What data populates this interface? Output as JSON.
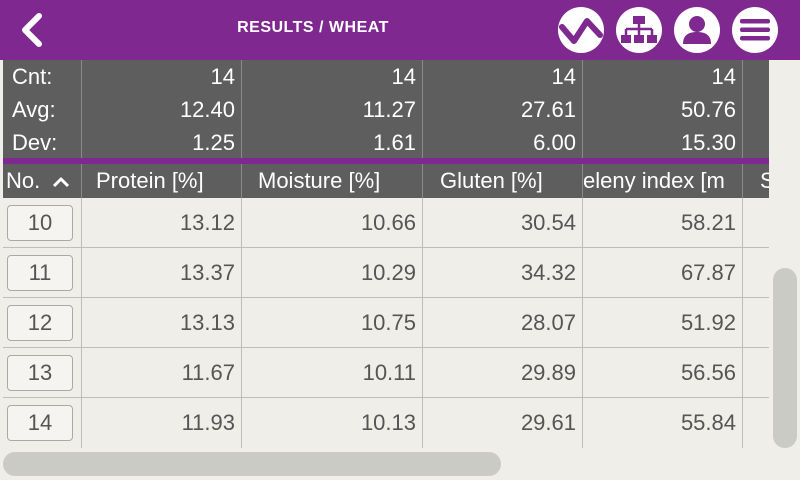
{
  "header": {
    "title": "RESULTS / WHEAT",
    "icons": [
      "back-arrow-icon",
      "trend-chart-icon",
      "network-tree-icon",
      "user-icon",
      "menu-icon"
    ],
    "accent_color": "#7f2990"
  },
  "stats": {
    "labels": [
      "Cnt:",
      "Avg:",
      "Dev:"
    ],
    "protein": [
      "14",
      "12.40",
      "1.25"
    ],
    "moisture": [
      "14",
      "11.27",
      "1.61"
    ],
    "gluten": [
      "14",
      "27.61",
      "6.00"
    ],
    "zeleny": [
      "14",
      "50.76",
      "15.30"
    ]
  },
  "columns": {
    "no": "No.",
    "protein": "Protein [%]",
    "moisture": "Moisture [%]",
    "gluten": "Gluten [%]",
    "zeleny": "eleny index [m",
    "next": "S"
  },
  "rows": [
    {
      "no": "10",
      "protein": "13.12",
      "moisture": "10.66",
      "gluten": "30.54",
      "zeleny": "58.21"
    },
    {
      "no": "11",
      "protein": "13.37",
      "moisture": "10.29",
      "gluten": "34.32",
      "zeleny": "67.87"
    },
    {
      "no": "12",
      "protein": "13.13",
      "moisture": "10.75",
      "gluten": "28.07",
      "zeleny": "51.92"
    },
    {
      "no": "13",
      "protein": "11.67",
      "moisture": "10.11",
      "gluten": "29.89",
      "zeleny": "56.56"
    },
    {
      "no": "14",
      "protein": "11.93",
      "moisture": "10.13",
      "gluten": "29.61",
      "zeleny": "55.84"
    }
  ],
  "sort": {
    "column": "no",
    "direction": "ascending",
    "icon": "chevron-up-icon"
  }
}
